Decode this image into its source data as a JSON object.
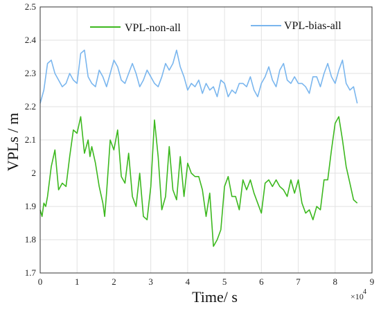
{
  "chart_data": {
    "type": "line",
    "xlabel": "Time/ s",
    "ylabel": "VPLs / m",
    "x_multiplier_label": "×10",
    "x_multiplier_exponent": "4",
    "xlim": [
      0,
      9
    ],
    "ylim": [
      1.7,
      2.5
    ],
    "x_ticks": [
      "0",
      "1",
      "2",
      "3",
      "4",
      "5",
      "6",
      "7",
      "8",
      "9"
    ],
    "y_ticks": [
      "1.7",
      "1.8",
      "1.9",
      "2",
      "2.1",
      "2.2",
      "2.3",
      "2.4",
      "2.5"
    ],
    "grid": true,
    "legend_position": "top",
    "series": [
      {
        "name": "VPL-non-all",
        "color": "#3cb81e",
        "x": [
          0,
          0.05,
          0.1,
          0.15,
          0.2,
          0.3,
          0.4,
          0.5,
          0.6,
          0.7,
          0.8,
          0.9,
          1.0,
          1.1,
          1.2,
          1.3,
          1.35,
          1.4,
          1.5,
          1.6,
          1.7,
          1.75,
          1.8,
          1.9,
          2.0,
          2.1,
          2.2,
          2.3,
          2.4,
          2.5,
          2.6,
          2.7,
          2.8,
          2.9,
          3.0,
          3.1,
          3.2,
          3.3,
          3.4,
          3.5,
          3.6,
          3.7,
          3.8,
          3.9,
          4.0,
          4.1,
          4.2,
          4.3,
          4.4,
          4.5,
          4.6,
          4.7,
          4.8,
          4.9,
          5.0,
          5.1,
          5.2,
          5.3,
          5.4,
          5.5,
          5.6,
          5.7,
          5.8,
          5.9,
          6.0,
          6.1,
          6.2,
          6.3,
          6.4,
          6.5,
          6.6,
          6.7,
          6.8,
          6.9,
          7.0,
          7.1,
          7.2,
          7.3,
          7.4,
          7.5,
          7.6,
          7.7,
          7.8,
          7.9,
          8.0,
          8.1,
          8.2,
          8.3,
          8.4,
          8.5,
          8.6
        ],
        "values": [
          1.89,
          1.87,
          1.91,
          1.9,
          1.93,
          2.02,
          2.07,
          1.95,
          1.97,
          1.96,
          2.05,
          2.13,
          2.12,
          2.17,
          2.06,
          2.1,
          2.05,
          2.08,
          2.03,
          1.96,
          1.91,
          1.87,
          1.94,
          2.1,
          2.07,
          2.13,
          1.99,
          1.97,
          2.06,
          1.93,
          1.9,
          2.0,
          1.87,
          1.86,
          1.96,
          2.16,
          2.05,
          1.89,
          1.93,
          2.08,
          1.95,
          1.92,
          2.05,
          1.93,
          2.03,
          2.0,
          1.99,
          1.99,
          1.95,
          1.87,
          1.94,
          1.78,
          1.8,
          1.83,
          1.96,
          1.99,
          1.93,
          1.93,
          1.89,
          1.98,
          1.95,
          1.98,
          1.94,
          1.91,
          1.88,
          1.97,
          1.98,
          1.96,
          1.98,
          1.96,
          1.95,
          1.93,
          1.98,
          1.94,
          1.98,
          1.91,
          1.88,
          1.89,
          1.86,
          1.9,
          1.89,
          1.98,
          1.98,
          2.07,
          2.15,
          2.17,
          2.1,
          2.02,
          1.97,
          1.92,
          1.91
        ]
      },
      {
        "name": "VPL-bias-all",
        "color": "#7ab6ee",
        "x": [
          0,
          0.1,
          0.2,
          0.3,
          0.4,
          0.5,
          0.6,
          0.7,
          0.8,
          0.9,
          1.0,
          1.1,
          1.2,
          1.3,
          1.4,
          1.5,
          1.6,
          1.7,
          1.8,
          1.9,
          2.0,
          2.1,
          2.2,
          2.3,
          2.4,
          2.5,
          2.6,
          2.7,
          2.8,
          2.9,
          3.0,
          3.1,
          3.2,
          3.3,
          3.4,
          3.5,
          3.6,
          3.7,
          3.8,
          3.9,
          4.0,
          4.1,
          4.2,
          4.3,
          4.4,
          4.5,
          4.6,
          4.7,
          4.8,
          4.9,
          5.0,
          5.1,
          5.2,
          5.3,
          5.4,
          5.5,
          5.6,
          5.7,
          5.8,
          5.9,
          6.0,
          6.1,
          6.2,
          6.3,
          6.4,
          6.5,
          6.6,
          6.7,
          6.8,
          6.9,
          7.0,
          7.1,
          7.2,
          7.3,
          7.4,
          7.5,
          7.6,
          7.7,
          7.8,
          7.9,
          8.0,
          8.1,
          8.2,
          8.3,
          8.4,
          8.5,
          8.6
        ],
        "values": [
          2.21,
          2.25,
          2.33,
          2.34,
          2.3,
          2.28,
          2.26,
          2.27,
          2.3,
          2.28,
          2.27,
          2.36,
          2.37,
          2.29,
          2.27,
          2.26,
          2.31,
          2.29,
          2.26,
          2.3,
          2.34,
          2.32,
          2.28,
          2.27,
          2.3,
          2.33,
          2.3,
          2.26,
          2.28,
          2.31,
          2.29,
          2.27,
          2.26,
          2.29,
          2.33,
          2.31,
          2.33,
          2.37,
          2.32,
          2.29,
          2.25,
          2.27,
          2.26,
          2.28,
          2.24,
          2.27,
          2.25,
          2.26,
          2.23,
          2.28,
          2.27,
          2.23,
          2.25,
          2.24,
          2.27,
          2.27,
          2.26,
          2.29,
          2.25,
          2.23,
          2.27,
          2.29,
          2.32,
          2.28,
          2.26,
          2.31,
          2.33,
          2.28,
          2.27,
          2.29,
          2.27,
          2.27,
          2.26,
          2.24,
          2.29,
          2.29,
          2.26,
          2.3,
          2.33,
          2.29,
          2.27,
          2.31,
          2.34,
          2.27,
          2.25,
          2.26,
          2.21
        ]
      }
    ]
  }
}
